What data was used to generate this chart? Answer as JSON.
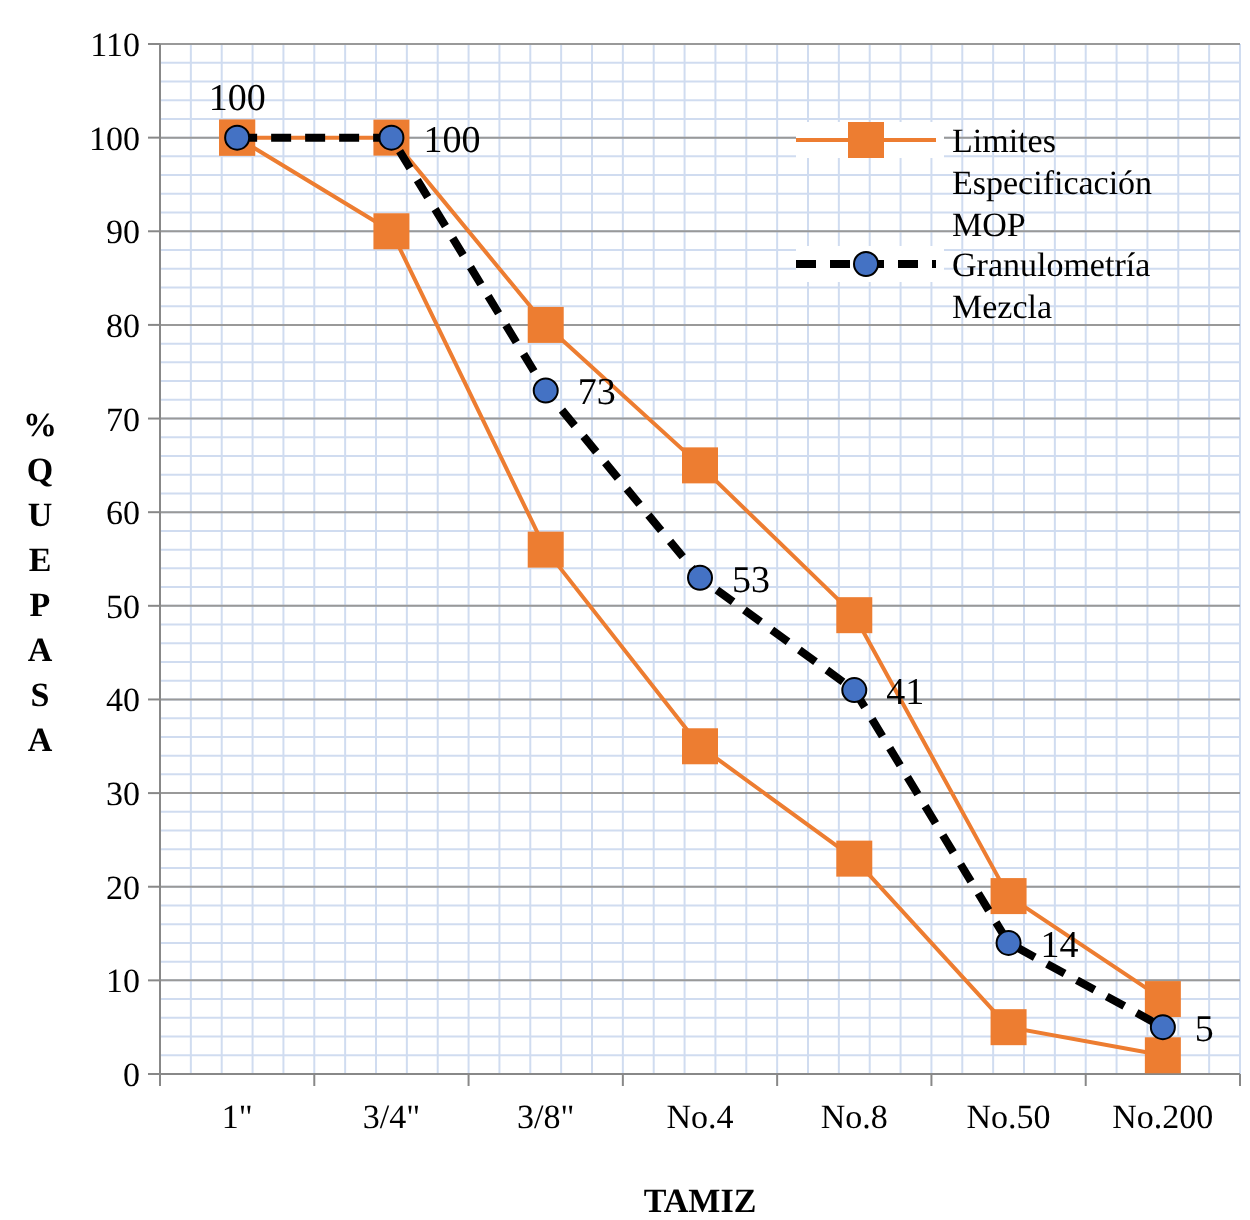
{
  "chart_data": {
    "type": "line",
    "xlabel": "TAMIZ",
    "ylabel": "% QUE PASA",
    "categories": [
      "1\"",
      "3/4\"",
      "3/8\"",
      "No.4",
      "No.8",
      "No.50",
      "No.200"
    ],
    "ylim": [
      0,
      110
    ],
    "yticks": [
      0,
      10,
      20,
      30,
      40,
      50,
      60,
      70,
      80,
      90,
      100,
      110
    ],
    "grid": true,
    "legend": "top right",
    "series": [
      {
        "name": "Limites Especificación MOP",
        "color": "#ed7d31",
        "marker": "square",
        "line_style": "solid",
        "values": [
          100,
          100,
          80,
          65,
          49,
          19,
          8
        ]
      },
      {
        "color": "#ed7d31",
        "marker": "square",
        "line_style": "solid",
        "values": [
          100,
          90,
          56,
          35,
          23,
          5,
          2
        ]
      },
      {
        "name": "Granulometría Mezcla",
        "color": "#000000",
        "marker": "circle",
        "line_style": "dashed",
        "values": [
          100,
          100,
          73,
          53,
          41,
          14,
          5
        ],
        "value_labels": [
          "100",
          "100",
          "73",
          "53",
          "41",
          "14",
          "5"
        ]
      }
    ]
  }
}
